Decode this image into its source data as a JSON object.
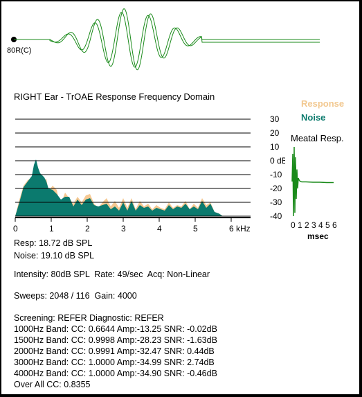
{
  "stimulus": {
    "label": "80R(C)"
  },
  "title": "RIGHT Ear - TrOAE Response Frequency Domain",
  "legend": {
    "response": "Response",
    "noise": "Noise",
    "meatal": "Meatal Resp."
  },
  "colors": {
    "response": "#f5c892",
    "noise": "#0b7a6e",
    "waveform": "#1a8a1a",
    "grid": "#000000"
  },
  "results": {
    "resp": "Resp: 18.72 dB SPL",
    "noise": "Noise: 19.10 dB SPL",
    "intensity": "Intensity: 80dB SPL  Rate: 49/sec  Acq: Non-Linear",
    "sweeps": "Sweeps: 2048 / 116  Gain: 4000",
    "screening": "Screening: REFER Diagnostic: REFER",
    "bands": [
      "1000Hz Band: CC: 0.6644 Amp:-13.25 SNR: -0.02dB",
      "1500Hz Band: CC: 0.9998 Amp:-28.23 SNR: -1.63dB",
      "2000Hz Band: CC: 0.9991 Amp:-32.47 SNR: 0.44dB",
      "3000Hz Band: CC: 1.0000 Amp:-34.99 SNR: 2.74dB",
      "4000Hz Band: CC: 1.0000 Amp:-34.90 SNR: -0.46dB"
    ],
    "overall": "Over All CC: 0.8355"
  },
  "chart_data": [
    {
      "type": "area",
      "title": "RIGHT Ear - TrOAE Response Frequency Domain",
      "x_unit": "kHz",
      "y_unit": "dB SPL",
      "xlim": [
        0,
        6
      ],
      "ylim": [
        -40,
        30
      ],
      "y_ticks": [
        30,
        20,
        10,
        0,
        -10,
        -20,
        -30,
        -40
      ],
      "y_tick_labels": [
        "30",
        "20",
        "10",
        "0 dB SPL",
        "-10",
        "-20",
        "-30",
        "-40"
      ],
      "x_ticks": [
        0,
        1,
        2,
        3,
        4,
        5,
        6
      ],
      "x_tick_labels": [
        "0",
        "1",
        "2",
        "3",
        "4",
        "5",
        "6 kHz"
      ],
      "grid": true,
      "series": [
        {
          "name": "Response",
          "x": [
            0.0,
            0.1,
            0.2,
            0.3,
            0.4,
            0.45,
            0.5,
            0.55,
            0.6,
            0.7,
            0.75,
            0.8,
            0.9,
            1.0,
            1.05,
            1.1,
            1.2,
            1.3,
            1.4,
            1.5,
            1.6,
            1.7,
            1.8,
            1.9,
            2.0,
            2.1,
            2.2,
            2.3,
            2.4,
            2.5,
            2.6,
            2.7,
            2.8,
            2.9,
            3.0,
            3.1,
            3.2,
            3.3,
            3.4,
            3.5,
            3.6,
            3.7,
            3.8,
            3.9,
            4.0,
            4.1,
            4.2,
            4.3,
            4.4,
            4.5,
            4.6,
            4.7,
            4.8,
            4.9,
            5.0
          ],
          "values": [
            -40,
            -28,
            -18,
            -14,
            -12,
            -5,
            -1,
            -6,
            -10,
            -14,
            -13,
            -22,
            -18,
            -21,
            -28,
            -31,
            -23,
            -27,
            -31,
            -26,
            -30,
            -25,
            -24,
            -31,
            -34,
            -30,
            -27,
            -33,
            -29,
            -34,
            -27,
            -34,
            -27,
            -35,
            -29,
            -33,
            -31,
            -35,
            -32,
            -34,
            -35,
            -30,
            -34,
            -32,
            -33,
            -29,
            -35,
            -31,
            -34,
            -27,
            -32,
            -30,
            -37,
            -38,
            -40
          ]
        },
        {
          "name": "Noise",
          "x": [
            0.0,
            0.1,
            0.2,
            0.3,
            0.4,
            0.45,
            0.5,
            0.55,
            0.6,
            0.7,
            0.75,
            0.8,
            0.9,
            1.0,
            1.05,
            1.1,
            1.2,
            1.3,
            1.4,
            1.5,
            1.6,
            1.7,
            1.8,
            1.9,
            2.0,
            2.1,
            2.2,
            2.3,
            2.4,
            2.5,
            2.6,
            2.7,
            2.8,
            2.9,
            3.0,
            3.1,
            3.2,
            3.3,
            3.4,
            3.5,
            3.6,
            3.7,
            3.8,
            3.9,
            4.0,
            4.1,
            4.2,
            4.3,
            4.4,
            4.5,
            4.6,
            4.7,
            4.8,
            4.9,
            5.0
          ],
          "values": [
            -40,
            -30,
            -19,
            -15,
            -11,
            -3,
            1,
            -5,
            -9,
            -12,
            -15,
            -20,
            -21,
            -24,
            -26,
            -28,
            -26,
            -26,
            -33,
            -28,
            -32,
            -28,
            -27,
            -32,
            -33,
            -32,
            -31,
            -35,
            -33,
            -36,
            -30,
            -36,
            -29,
            -36,
            -32,
            -34,
            -33,
            -36,
            -34,
            -35,
            -36,
            -32,
            -35,
            -33,
            -34,
            -31,
            -35,
            -33,
            -35,
            -29,
            -34,
            -31,
            -37,
            -38,
            -40
          ]
        }
      ]
    },
    {
      "type": "line",
      "title": "Meatal Resp.",
      "x_unit": "msec",
      "xlim": [
        0,
        6
      ],
      "x_ticks": [
        0,
        1,
        2,
        3,
        4,
        5,
        6
      ],
      "x_tick_labels": [
        "0",
        "1",
        "2",
        "3",
        "4",
        "5",
        "6"
      ],
      "series": [
        {
          "name": "Meatal Resp.",
          "x": [
            0.0,
            0.1,
            0.2,
            0.3,
            0.4,
            0.5,
            0.6,
            0.7,
            0.8,
            0.9,
            1.0,
            1.1,
            1.2,
            1.4,
            1.6,
            2.0,
            3.0,
            4.0,
            5.0,
            6.0
          ],
          "values": [
            0,
            0.8,
            -1.0,
            1.0,
            -0.9,
            0.7,
            -0.5,
            0.35,
            -0.2,
            0.1,
            0.05,
            0.02,
            0,
            -0.01,
            -0.01,
            -0.01,
            -0.02,
            -0.02,
            -0.03,
            -0.03
          ]
        }
      ]
    }
  ]
}
